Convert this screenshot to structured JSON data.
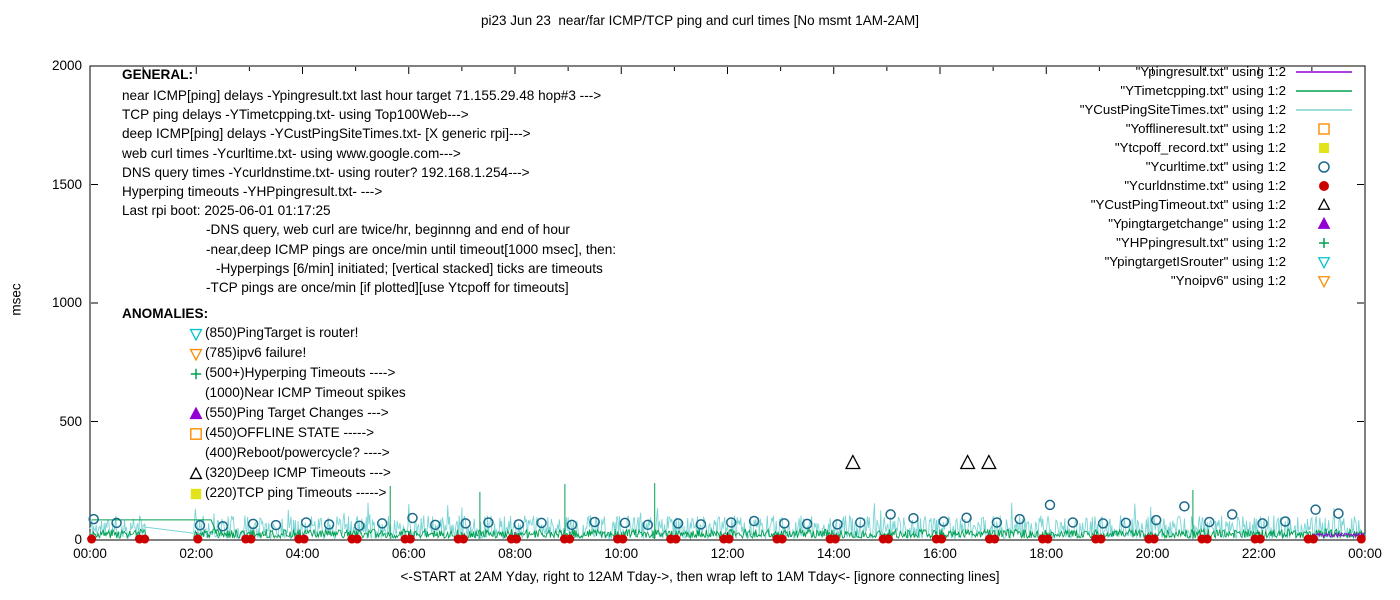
{
  "chart_data": {
    "type": "line",
    "title": "pi23 Jun 23  near/far ICMP/TCP ping and curl times [No msmt 1AM-2AM]",
    "ylabel": "msec",
    "xlabel": "<-START at 2AM Yday, right to 12AM Tday->, then wrap left to 1AM Tday<- [ignore connecting lines]",
    "ylim": [
      0,
      2000
    ],
    "xlim_hours": [
      0,
      24
    ],
    "y_ticks": [
      0,
      500,
      1000,
      1500,
      2000
    ],
    "x_tick_hours": [
      0,
      2,
      4,
      6,
      8,
      10,
      12,
      14,
      16,
      18,
      20,
      22,
      24
    ],
    "x_tick_labels": [
      "00:00",
      "02:00",
      "04:00",
      "06:00",
      "08:00",
      "10:00",
      "12:00",
      "14:00",
      "16:00",
      "18:00",
      "20:00",
      "22:00",
      "00:00"
    ],
    "grid": false,
    "legend_position": "top-right-inside",
    "legend": [
      {
        "label": "\"Ypingresult.txt\" using 1:2",
        "marker": "line",
        "color": "#9400d3"
      },
      {
        "label": "\"YTimetcpping.txt\" using 1:2",
        "marker": "line",
        "color": "#00a050"
      },
      {
        "label": "\"YCustPingSiteTimes.txt\" using 1:2",
        "marker": "line",
        "color": "#7bd4d4"
      },
      {
        "label": "\"Yofflineresult.txt\" using 1:2",
        "marker": "square-open",
        "color": "#ff8c00"
      },
      {
        "label": "\"Ytcpoff_record.txt\" using 1:2",
        "marker": "square-filled",
        "color": "#e3e31c"
      },
      {
        "label": "\"Ycurltime.txt\" using 1:2",
        "marker": "circle-open",
        "color": "#1b6a8a"
      },
      {
        "label": "\"Ycurldnstime.txt\" using 1:2",
        "marker": "circle-filled",
        "color": "#cd0000"
      },
      {
        "label": "\"YCustPingTimeout.txt\" using 1:2",
        "marker": "triangle-up-open",
        "color": "#000000"
      },
      {
        "label": "\"Ypingtargetchange\" using 1:2",
        "marker": "triangle-up-filled",
        "color": "#9400d3"
      },
      {
        "label": "\"YHPpingresult.txt\" using 1:2",
        "marker": "plus",
        "color": "#00a050"
      },
      {
        "label": "\"YpingtargetISrouter\" using 1:2",
        "marker": "triangle-down-open",
        "color": "#00c5cd"
      },
      {
        "label": "\"Ynoipv6\" using 1:2",
        "marker": "triangle-down-open",
        "color": "#ff8c00"
      }
    ],
    "series": [
      {
        "name": "YCustPingSiteTimes",
        "style": "noise",
        "color": "#7bd4d4",
        "seed": 11,
        "x_range": [
          0,
          24
        ],
        "gap": [
          1.05,
          1.95
        ],
        "points_per_hour": 60,
        "min": 6,
        "max": 104,
        "skew": 1.3,
        "spike_p": 0.012,
        "spike_max": 168
      },
      {
        "name": "YTimetcpping",
        "style": "noise",
        "color": "#00a050",
        "seed": 3,
        "x_range": [
          0,
          24
        ],
        "gap": [
          1.05,
          1.95
        ],
        "points_per_hour": 60,
        "min": 8,
        "max": 46,
        "skew": 1.2,
        "spike_p": 0,
        "spike_max": 0
      },
      {
        "name": "Ypingresult-lasthour",
        "style": "noise",
        "color": "#9400d3",
        "seed": 5,
        "x_range": [
          23,
          24
        ],
        "points_per_hour": 60,
        "min": 12,
        "max": 30,
        "skew": 1.0,
        "spike_p": 0,
        "spike_max": 0
      },
      {
        "name": "tcp-spikes",
        "style": "spikes",
        "color": "#00a050",
        "points": [
          [
            5.65,
            228
          ],
          [
            7.34,
            203
          ],
          [
            8.94,
            236
          ],
          [
            10.63,
            240
          ],
          [
            20.76,
            211
          ]
        ]
      },
      {
        "name": "connector-flat",
        "style": "polyline",
        "color": "#00a050",
        "points": [
          [
            0.03,
            85
          ],
          [
            2.28,
            85
          ],
          [
            2.42,
            8
          ]
        ]
      },
      {
        "name": "connector-gap",
        "style": "polyline",
        "color": "#7bd4d4",
        "points": [
          [
            1.02,
            55
          ],
          [
            1.98,
            28
          ]
        ]
      },
      {
        "name": "Ycurltime",
        "style": "points",
        "marker": "circle-open",
        "color": "#1b6a8a",
        "size": 4.5,
        "points": [
          [
            0.07,
            88
          ],
          [
            0.5,
            72
          ],
          [
            2.07,
            62
          ],
          [
            2.5,
            58
          ],
          [
            3.07,
            68
          ],
          [
            3.5,
            63
          ],
          [
            4.07,
            74
          ],
          [
            4.5,
            66
          ],
          [
            5.07,
            60
          ],
          [
            5.5,
            70
          ],
          [
            6.07,
            93
          ],
          [
            6.5,
            64
          ],
          [
            7.07,
            70
          ],
          [
            7.5,
            74
          ],
          [
            8.07,
            66
          ],
          [
            8.5,
            72
          ],
          [
            9.07,
            64
          ],
          [
            9.5,
            76
          ],
          [
            10.07,
            72
          ],
          [
            10.5,
            64
          ],
          [
            11.07,
            70
          ],
          [
            11.5,
            66
          ],
          [
            12.07,
            74
          ],
          [
            12.5,
            80
          ],
          [
            13.07,
            70
          ],
          [
            13.5,
            68
          ],
          [
            14.07,
            66
          ],
          [
            14.5,
            74
          ],
          [
            15.07,
            108
          ],
          [
            15.5,
            92
          ],
          [
            16.07,
            78
          ],
          [
            16.5,
            94
          ],
          [
            17.07,
            74
          ],
          [
            17.5,
            88
          ],
          [
            18.07,
            148
          ],
          [
            18.5,
            74
          ],
          [
            19.07,
            70
          ],
          [
            19.5,
            72
          ],
          [
            20.07,
            84
          ],
          [
            20.6,
            142
          ],
          [
            21.07,
            76
          ],
          [
            21.5,
            108
          ],
          [
            22.07,
            70
          ],
          [
            22.5,
            78
          ],
          [
            23.07,
            128
          ],
          [
            23.5,
            112
          ]
        ]
      },
      {
        "name": "Ycurldnstime",
        "style": "points-x",
        "marker": "circle-filled",
        "color": "#cd0000",
        "size": 4.5,
        "y": 4,
        "x": [
          0.03,
          0.93,
          1.03,
          2.03,
          2.93,
          3.03,
          3.93,
          4.03,
          4.93,
          5.03,
          5.93,
          6.03,
          6.93,
          7.03,
          7.93,
          8.03,
          8.93,
          9.03,
          9.93,
          10.03,
          10.93,
          11.03,
          11.93,
          12.03,
          12.93,
          13.03,
          13.93,
          14.03,
          14.93,
          15.03,
          15.93,
          16.03,
          16.93,
          17.03,
          17.93,
          18.03,
          18.93,
          19.03,
          19.93,
          20.03,
          20.93,
          21.03,
          21.93,
          22.03,
          22.93,
          23.03,
          23.93
        ]
      },
      {
        "name": "YCustPingTimeout",
        "style": "points",
        "marker": "triangle-up-open",
        "color": "#000000",
        "size": 6.5,
        "points": [
          [
            14.36,
            325
          ],
          [
            16.52,
            325
          ],
          [
            16.92,
            325
          ]
        ]
      }
    ],
    "annotations": {
      "general_header": "GENERAL:",
      "general_lines": [
        {
          "text": "near ICMP[ping] delays -Ypingresult.txt last hour target 71.155.29.48 hop#3 --->",
          "indent": 0
        },
        {
          "text": "TCP ping delays -YTimetcpping.txt- using Top100Web--->",
          "indent": 0
        },
        {
          "text": "deep ICMP[ping] delays -YCustPingSiteTimes.txt- [X generic rpi]--->",
          "indent": 0
        },
        {
          "text": "web curl times -Ycurltime.txt- using www.google.com--->",
          "indent": 0
        },
        {
          "text": "DNS query times -Ycurldnstime.txt- using router? 192.168.1.254--->",
          "indent": 0
        },
        {
          "text": "Hyperping timeouts -YHPpingresult.txt- --->",
          "indent": 0
        },
        {
          "text": "Last rpi boot: 2025-06-01 01:17:25",
          "indent": 0
        },
        {
          "text": "-DNS query, web curl are twice/hr, beginnng and end of hour",
          "indent": 84
        },
        {
          "text": "-near,deep ICMP pings are once/min until timeout[1000 msec], then:",
          "indent": 84
        },
        {
          "text": "-Hyperpings [6/min] initiated; [vertical stacked] ticks are timeouts",
          "indent": 94
        },
        {
          "text": "-TCP pings are once/min [if plotted][use Ytcpoff for timeouts]",
          "indent": 84
        }
      ],
      "anomalies_header": "ANOMALIES:",
      "anomaly_lines": [
        {
          "marker": "triangle-down-open",
          "color": "#00c5cd",
          "text": "(850)PingTarget is router!"
        },
        {
          "marker": "triangle-down-open",
          "color": "#ff8c00",
          "text": "(785)ipv6 failure!"
        },
        {
          "marker": "plus",
          "color": "#00a050",
          "text": "(500+)Hyperping Timeouts ---->"
        },
        {
          "marker": "none",
          "color": "",
          "text": "(1000)Near ICMP Timeout spikes"
        },
        {
          "marker": "triangle-up-filled",
          "color": "#9400d3",
          "text": "(550)Ping Target Changes --->"
        },
        {
          "marker": "square-open",
          "color": "#ff8c00",
          "text": "(450)OFFLINE STATE ----->"
        },
        {
          "marker": "none",
          "color": "",
          "text": "(400)Reboot/powercycle? ---->"
        },
        {
          "marker": "triangle-up-open",
          "color": "#000000",
          "text": "(320)Deep ICMP Timeouts --->"
        },
        {
          "marker": "square-filled",
          "color": "#e3e31c",
          "text": "(220)TCP ping Timeouts ----->"
        }
      ]
    }
  }
}
